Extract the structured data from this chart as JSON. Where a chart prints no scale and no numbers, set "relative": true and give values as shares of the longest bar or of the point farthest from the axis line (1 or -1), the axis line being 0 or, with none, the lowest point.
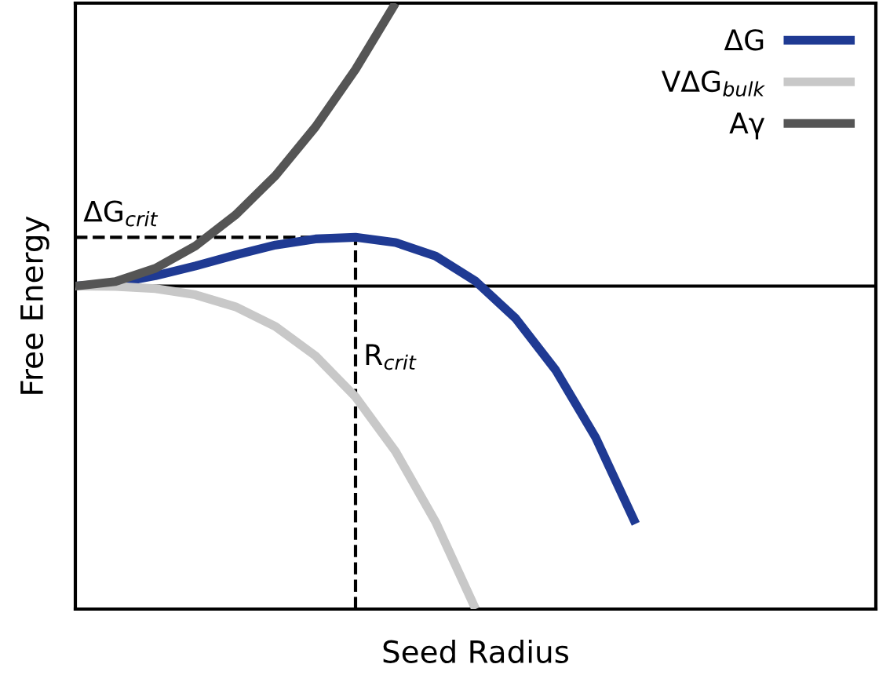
{
  "chart_data": {
    "type": "line",
    "relative": true,
    "xlabel": "Seed Radius",
    "ylabel": "Free Energy",
    "categories": [
      null,
      null,
      null,
      null,
      null,
      null,
      null,
      null,
      null,
      null,
      null,
      null,
      null,
      null,
      null,
      null,
      null,
      null,
      null,
      null,
      null
    ],
    "series": [
      {
        "name": "ΔG",
        "color": "#1f3a93",
        "values": [
          0,
          0.009,
          0.032,
          0.062,
          0.096,
          0.127,
          0.146,
          0.151,
          0.135,
          0.093,
          0.015,
          -0.1,
          -0.26,
          -0.469,
          -0.736,
          null,
          null,
          null,
          null,
          null,
          null
        ]
      },
      {
        "name": "VΔG$_{bulk}$",
        "color": "#c8c8c8",
        "values": [
          0,
          -0.001,
          -0.008,
          -0.027,
          -0.064,
          -0.125,
          -0.216,
          -0.343,
          -0.512,
          -0.73,
          -1,
          null,
          null,
          null,
          null,
          null,
          null,
          null,
          null,
          null,
          null
        ]
      },
      {
        "name": "Aγ",
        "color": "#555555",
        "values": [
          0,
          0.014,
          0.055,
          0.124,
          0.22,
          0.342,
          0.493,
          0.671,
          0.876,
          null,
          null,
          null,
          null,
          null,
          null,
          null,
          null,
          null,
          null,
          null,
          null
        ]
      }
    ],
    "annotations": [
      "ΔG$_{crit}$",
      "R$_{crit}$"
    ],
    "legend": "top right",
    "marker": "none",
    "line_style": "solid"
  }
}
